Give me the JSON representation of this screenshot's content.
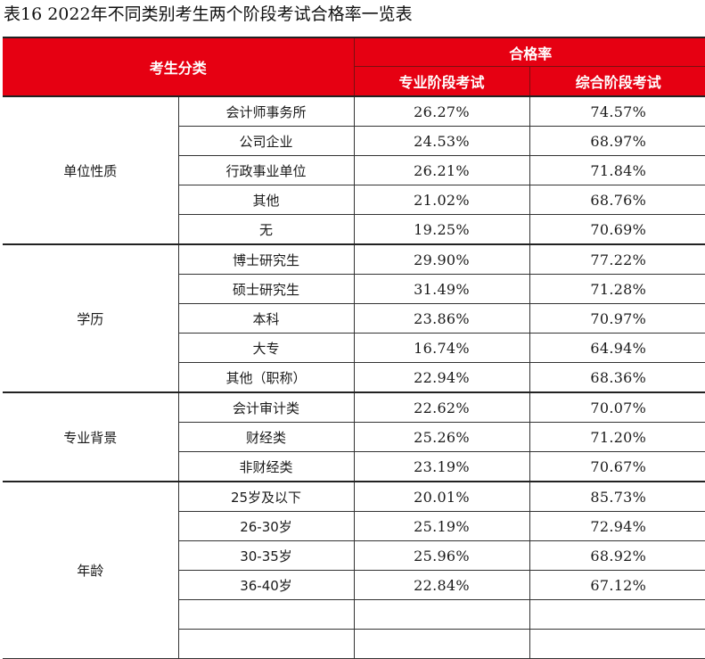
{
  "caption": "表16  2022年不同类别考生两个阶段考试合格率一览表",
  "colors": {
    "header_bg": "#e60012",
    "header_text": "#ffffff",
    "grid": "#333333"
  },
  "header": {
    "category": "考生分类",
    "pass_rate": "合格率",
    "stage1": "专业阶段考试",
    "stage2": "综合阶段考试"
  },
  "groups": [
    {
      "name": "单位性质",
      "rows": [
        {
          "label": "会计师事务所",
          "stage1": "26.27%",
          "stage2": "74.57%"
        },
        {
          "label": "公司企业",
          "stage1": "24.53%",
          "stage2": "68.97%"
        },
        {
          "label": "行政事业单位",
          "stage1": "26.21%",
          "stage2": "71.84%"
        },
        {
          "label": "其他",
          "stage1": "21.02%",
          "stage2": "68.76%"
        },
        {
          "label": "无",
          "stage1": "19.25%",
          "stage2": "70.69%"
        }
      ]
    },
    {
      "name": "学历",
      "rows": [
        {
          "label": "博士研究生",
          "stage1": "29.90%",
          "stage2": "77.22%"
        },
        {
          "label": "硕士研究生",
          "stage1": "31.49%",
          "stage2": "71.28%"
        },
        {
          "label": "本科",
          "stage1": "23.86%",
          "stage2": "70.97%"
        },
        {
          "label": "大专",
          "stage1": "16.74%",
          "stage2": "64.94%"
        },
        {
          "label": "其他（职称）",
          "stage1": "22.94%",
          "stage2": "68.36%"
        }
      ]
    },
    {
      "name": "专业背景",
      "rows": [
        {
          "label": "会计审计类",
          "stage1": "22.62%",
          "stage2": "70.07%"
        },
        {
          "label": "财经类",
          "stage1": "25.26%",
          "stage2": "71.20%"
        },
        {
          "label": "非财经类",
          "stage1": "23.19%",
          "stage2": "70.67%"
        }
      ]
    },
    {
      "name": "年龄",
      "rows": [
        {
          "label": "25岁及以下",
          "stage1": "20.01%",
          "stage2": "85.73%"
        },
        {
          "label": "26-30岁",
          "stage1": "25.19%",
          "stage2": "72.94%"
        },
        {
          "label": "30-35岁",
          "stage1": "25.96%",
          "stage2": "68.92%"
        },
        {
          "label": "36-40岁",
          "stage1": "22.84%",
          "stage2": "67.12%"
        },
        {
          "label": "",
          "stage1": "",
          "stage2": ""
        },
        {
          "label": "",
          "stage1": "",
          "stage2": ""
        }
      ]
    }
  ]
}
